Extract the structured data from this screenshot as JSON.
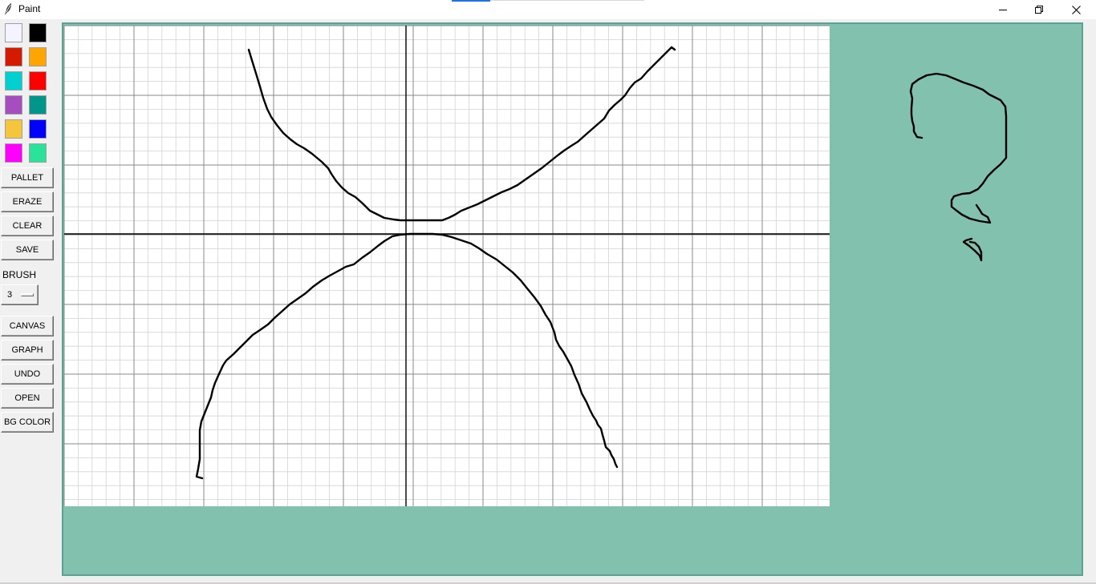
{
  "window": {
    "title": "Paint",
    "icons": {
      "app": "feather-icon",
      "minimize": "minimize-icon",
      "maximize": "restore-icon",
      "close": "close-icon"
    }
  },
  "palette": {
    "colors": [
      "#f5f3ff",
      "#000000",
      "#d41a00",
      "#ffa500",
      "#00d0d0",
      "#ff0000",
      "#a64dbf",
      "#00968a",
      "#f5c53c",
      "#0000ff",
      "#ff00ff",
      "#29e39b"
    ]
  },
  "toolbar": {
    "pallet": "PALLET",
    "eraze": "ERAZE",
    "clear": "CLEAR",
    "save": "SAVE",
    "brush_label": "BRUSH",
    "brush_value": "3",
    "canvas": "CANVAS",
    "graph": "GRAPH",
    "undo": "UNDO",
    "open": "OPEN",
    "bg_color": "BG COLOR"
  },
  "canvas": {
    "background_color": "#82c1ae",
    "graph_paper_color": "#ffffff",
    "ink_color": "#000000"
  }
}
